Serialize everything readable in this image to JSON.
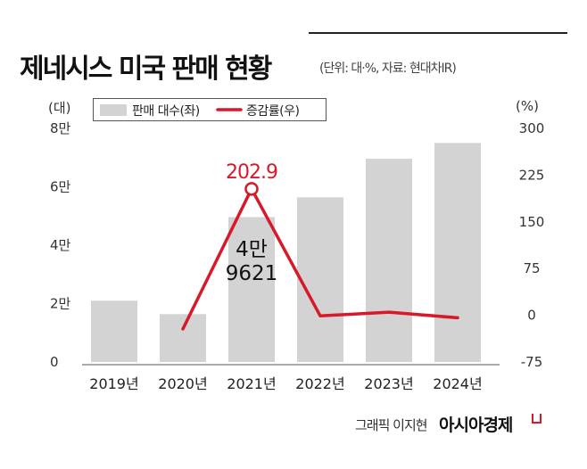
{
  "header": {
    "title": "제네시스 미국 판매 현황",
    "note": "(단위: 대·%, 자료: 현대차IR)"
  },
  "axes": {
    "left_unit": "(대)",
    "right_unit": "(%)"
  },
  "footer": {
    "credit": "그래픽 이지현",
    "brand": "아시아경제"
  },
  "colors": {
    "bar": "#d3d3d3",
    "line": "#d7192a",
    "text": "#222222"
  },
  "chart_data": {
    "type": "bar+line",
    "title": "제네시스 미국 판매 현황",
    "categories": [
      "2019년",
      "2020년",
      "2021년",
      "2022년",
      "2023년",
      "2024년"
    ],
    "series": [
      {
        "name": "판매 대수(좌)",
        "type": "bar",
        "axis": "left",
        "values": [
          21000,
          16400,
          49621,
          56400,
          69600,
          75000
        ]
      },
      {
        "name": "증감률(우)",
        "type": "line",
        "axis": "right",
        "values": [
          null,
          -22,
          202.9,
          -1,
          5,
          -4
        ]
      }
    ],
    "left_axis": {
      "ylim": [
        0,
        80000
      ],
      "ticks": [
        0,
        20000,
        40000,
        60000,
        80000
      ],
      "tick_labels": [
        "0",
        "2만",
        "4만",
        "6만",
        "8만"
      ]
    },
    "right_axis": {
      "ylim": [
        -75,
        300
      ],
      "ticks": [
        -75,
        0,
        75,
        150,
        225,
        300
      ],
      "tick_labels": [
        "-75",
        "0",
        "75",
        "150",
        "225",
        "300"
      ]
    },
    "annotations": [
      {
        "category": "2021년",
        "series": "증감률(우)",
        "text": "202.9"
      },
      {
        "category": "2021년",
        "series": "판매 대수(좌)",
        "lines": [
          "4만",
          "9621"
        ]
      }
    ],
    "legend": [
      "판매 대수(좌)",
      "증감률(우)"
    ],
    "legend_position": "top-left"
  }
}
